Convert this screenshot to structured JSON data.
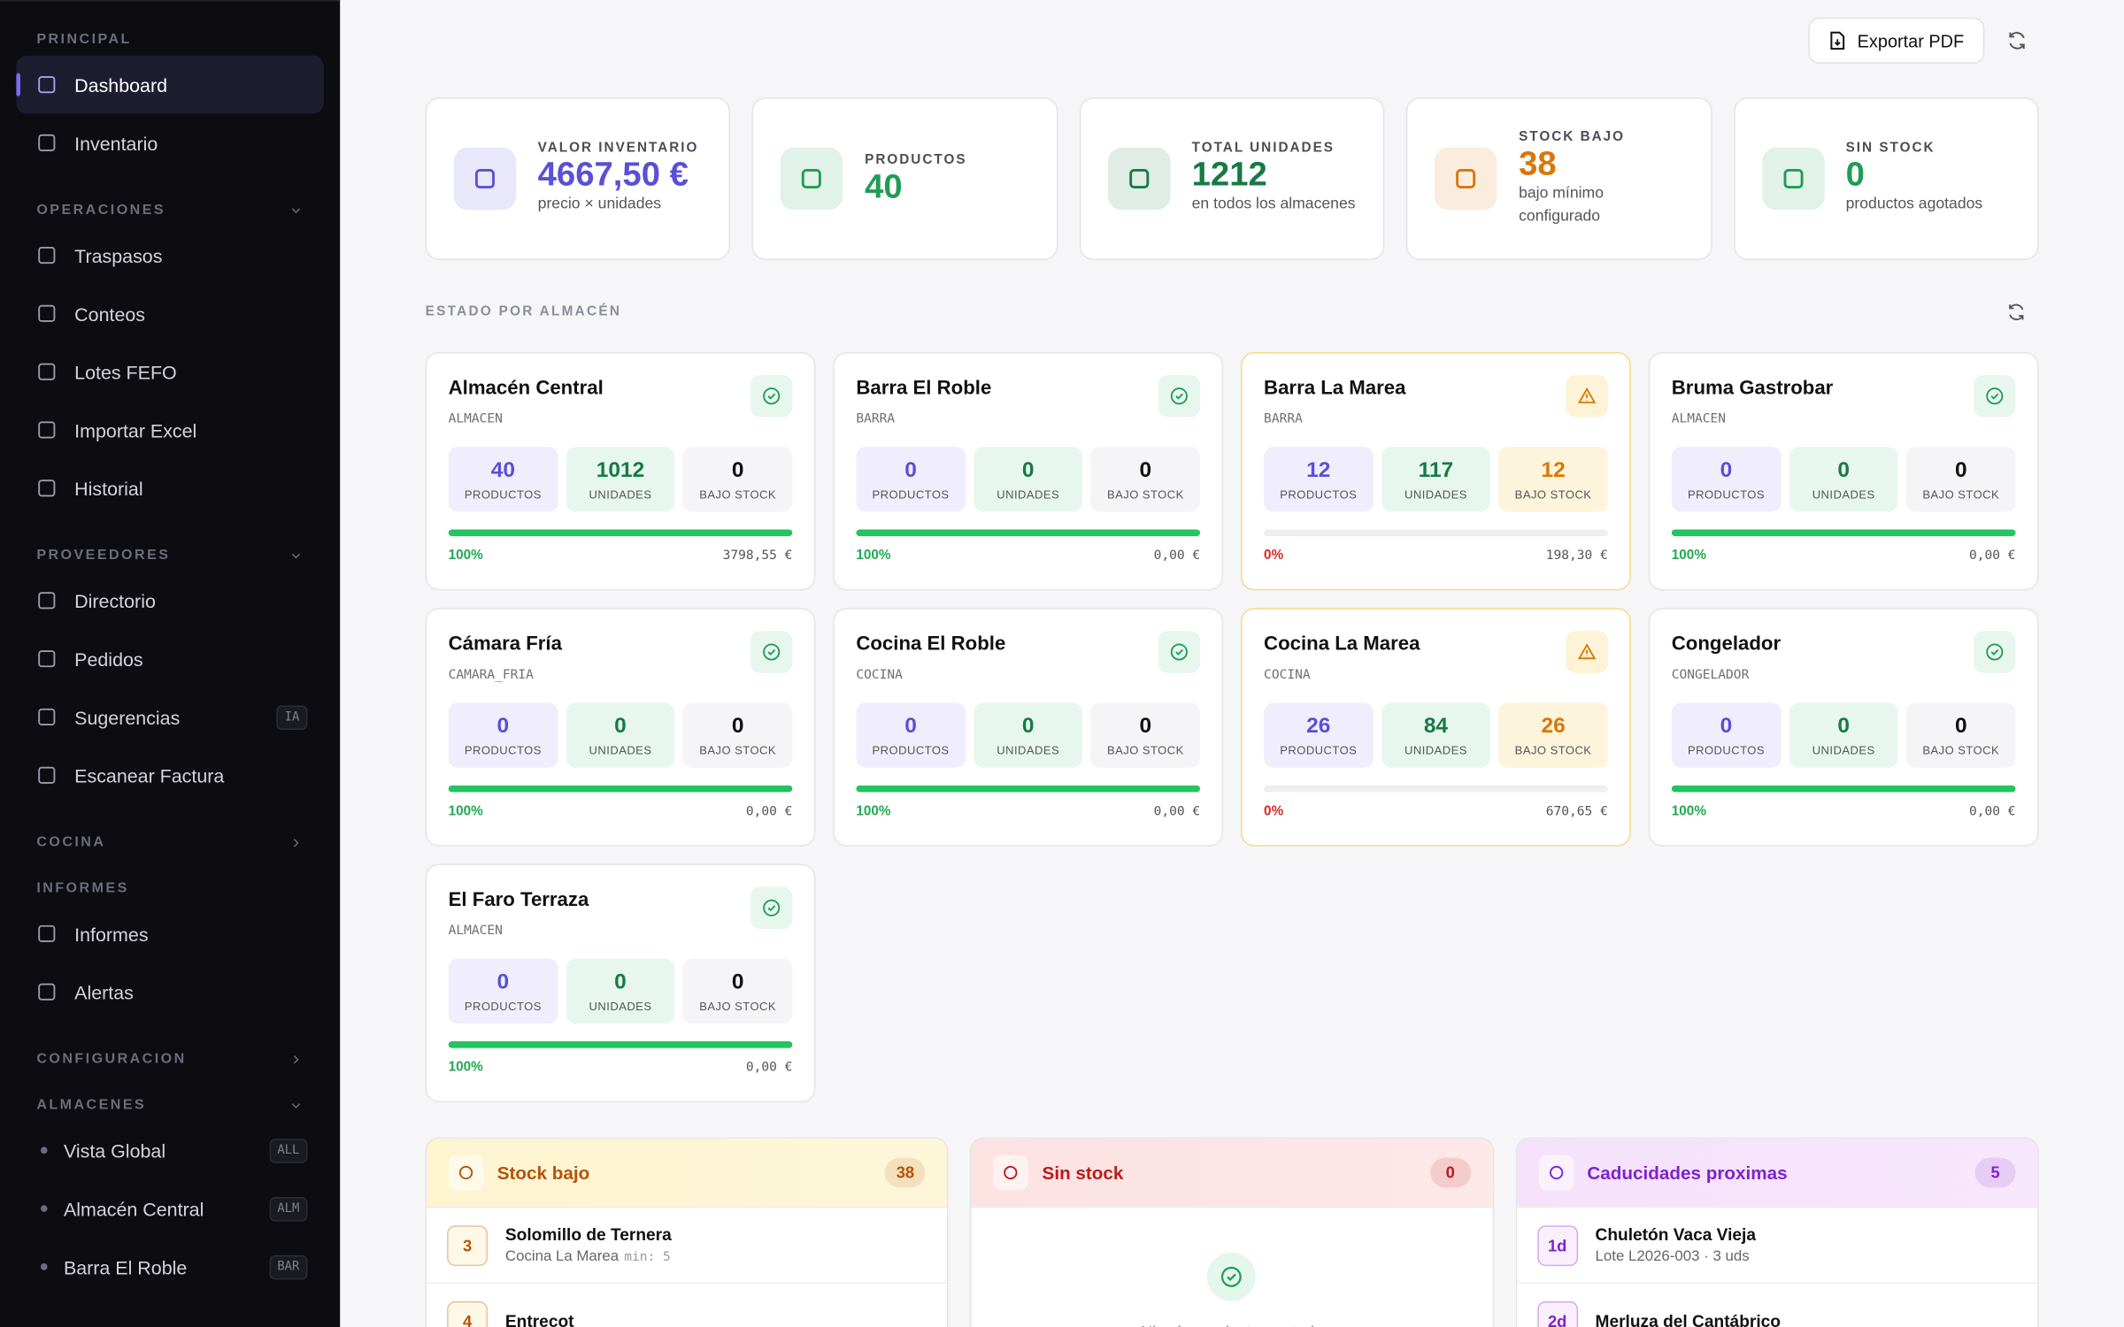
{
  "sidebar": {
    "sections": [
      {
        "title": "PRINCIPAL",
        "items": [
          {
            "label": "Dashboard",
            "active": true
          },
          {
            "label": "Inventario"
          }
        ]
      },
      {
        "title": "OPERACIONES",
        "chevron": "down",
        "items": [
          {
            "label": "Traspasos"
          },
          {
            "label": "Conteos"
          },
          {
            "label": "Lotes FEFO"
          },
          {
            "label": "Importar Excel"
          },
          {
            "label": "Historial"
          }
        ]
      },
      {
        "title": "PROVEEDORES",
        "chevron": "down",
        "items": [
          {
            "label": "Directorio"
          },
          {
            "label": "Pedidos"
          },
          {
            "label": "Sugerencias",
            "badge": "IA"
          },
          {
            "label": "Escanear Factura"
          }
        ]
      },
      {
        "title": "COCINA",
        "chevron": "right",
        "items": []
      },
      {
        "title": "INFORMES",
        "items": [
          {
            "label": "Informes"
          },
          {
            "label": "Alertas"
          }
        ]
      },
      {
        "title": "CONFIGURACION",
        "chevron": "right",
        "items": []
      },
      {
        "title": "ALMACENES",
        "chevron": "down",
        "items": [
          {
            "label": "Vista Global",
            "badge": "ALL",
            "dot": true
          },
          {
            "label": "Almacén Central",
            "badge": "ALM",
            "dot": true
          },
          {
            "label": "Barra El Roble",
            "badge": "BAR",
            "dot": true
          }
        ]
      }
    ]
  },
  "header": {
    "export": "Exportar PDF"
  },
  "kpis": [
    {
      "label": "VALOR INVENTARIO",
      "value": "4667,50 €",
      "sub": "precio × unidades",
      "color": "#5b4fd6"
    },
    {
      "label": "PRODUCTOS",
      "value": 40,
      "color": "#1f9d55"
    },
    {
      "label": "TOTAL UNIDADES",
      "value": 1212,
      "sub": "en todos los almacenes",
      "color": "#177a45"
    },
    {
      "label": "STOCK BAJO",
      "value": 38,
      "sub": "bajo mínimo configurado",
      "color": "#d97706"
    },
    {
      "label": "SIN STOCK",
      "value": 0,
      "sub": "productos agotados",
      "color": "#1f9d55"
    }
  ],
  "warehouses_title": "ESTADO POR ALMACÉN",
  "stat_labels": [
    "PRODUCTOS",
    "UNIDADES",
    "BAJO STOCK"
  ],
  "warehouses": [
    {
      "name": "Almacén Central",
      "type": "ALMACEN",
      "stats": [
        40,
        1012,
        0
      ],
      "pct": "100%",
      "value": "3798,55 €",
      "warn": false
    },
    {
      "name": "Barra El Roble",
      "type": "BARRA",
      "stats": [
        0,
        0,
        0
      ],
      "pct": "100%",
      "value": "0,00 €",
      "warn": false
    },
    {
      "name": "Barra La Marea",
      "type": "BARRA",
      "stats": [
        12,
        117,
        12
      ],
      "pct": "0%",
      "value": "198,30 €",
      "warn": true
    },
    {
      "name": "Bruma Gastrobar",
      "type": "ALMACEN",
      "stats": [
        0,
        0,
        0
      ],
      "pct": "100%",
      "value": "0,00 €",
      "warn": false
    },
    {
      "name": "Cámara Fría",
      "type": "CAMARA_FRIA",
      "stats": [
        0,
        0,
        0
      ],
      "pct": "100%",
      "value": "0,00 €",
      "warn": false
    },
    {
      "name": "Cocina El Roble",
      "type": "COCINA",
      "stats": [
        0,
        0,
        0
      ],
      "pct": "100%",
      "value": "0,00 €",
      "warn": false
    },
    {
      "name": "Cocina La Marea",
      "type": "COCINA",
      "stats": [
        26,
        84,
        26
      ],
      "pct": "0%",
      "value": "670,65 €",
      "warn": true
    },
    {
      "name": "Congelador",
      "type": "CONGELADOR",
      "stats": [
        0,
        0,
        0
      ],
      "pct": "100%",
      "value": "0,00 €",
      "warn": false
    },
    {
      "name": "El Faro Terraza",
      "type": "ALMACEN",
      "stats": [
        0,
        0,
        0
      ],
      "pct": "100%",
      "value": "0,00 €",
      "warn": false
    }
  ],
  "panels": [
    {
      "title": "Stock bajo",
      "count": 38,
      "color": "#b45309",
      "bg": "#fdf4d0",
      "rows": [
        {
          "badge": 3,
          "name": "Solomillo de Ternera",
          "detail": "Cocina La Marea",
          "extra": "min: 5"
        },
        {
          "badge": 4,
          "name": "Entrecot"
        }
      ]
    },
    {
      "title": "Sin stock",
      "count": 0,
      "color": "#b91c1c",
      "bg": "#fde2e2",
      "empty": "Ningún producto agotado",
      "rows": []
    },
    {
      "title": "Caducidades proximas",
      "count": 5,
      "color": "#7e22ce",
      "bg": "#f5e1fb",
      "rows": [
        {
          "badge": "1d",
          "name": "Chuletón Vaca Vieja",
          "detail": "Lote L2026-003 · 3 uds"
        },
        {
          "badge": "2d",
          "name": "Merluza del Cantábrico"
        }
      ]
    }
  ]
}
